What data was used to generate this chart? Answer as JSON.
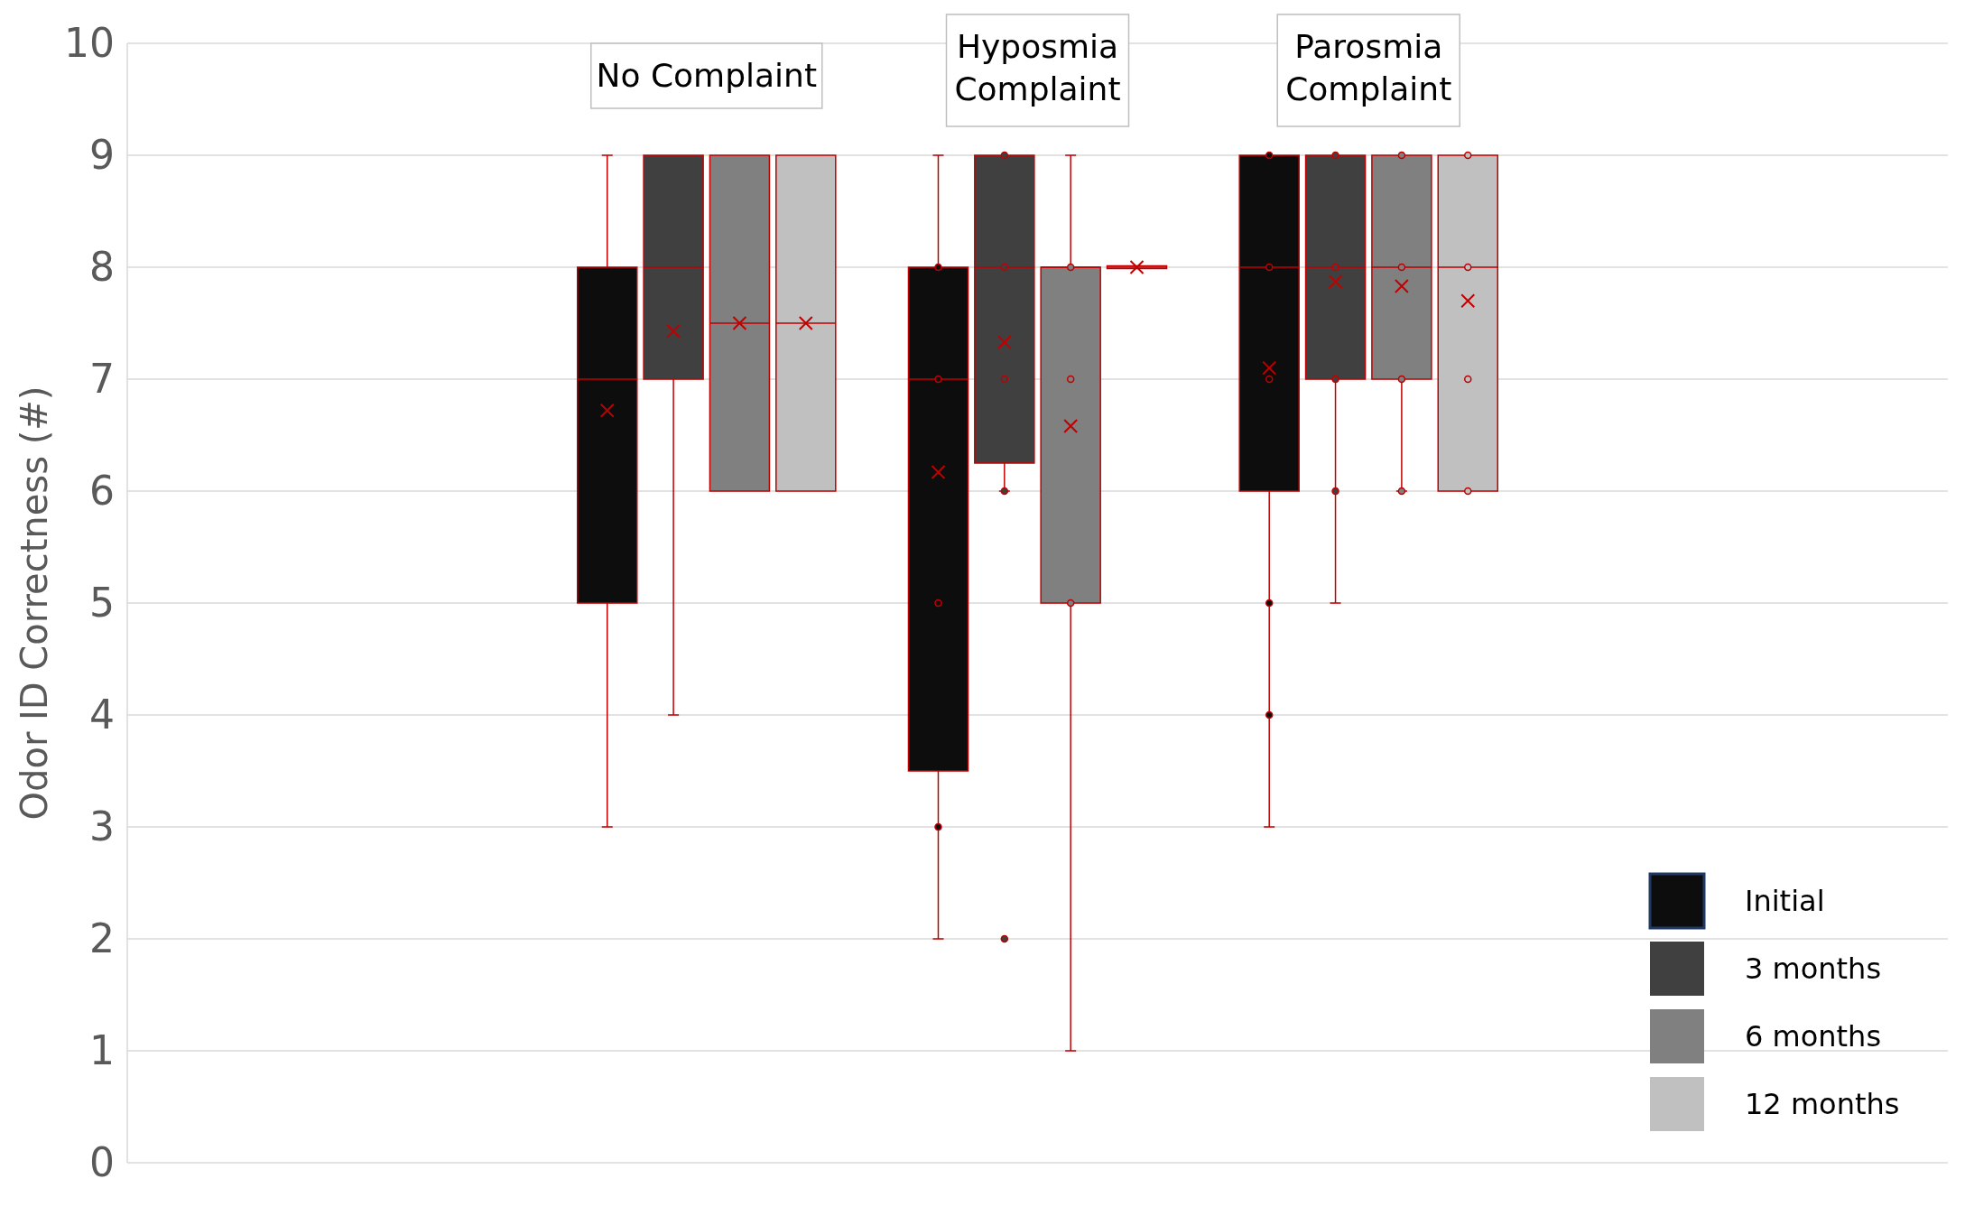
{
  "chart_data": {
    "type": "box",
    "ylabel": "Odor ID Correctness (#)",
    "categories": [
      null,
      "No Complaint",
      "Hyposmia Complaint",
      "Parosmia Complaint",
      null
    ],
    "ylim": [
      0,
      10
    ],
    "yticks": [
      0,
      1,
      2,
      3,
      4,
      5,
      6,
      7,
      8,
      9,
      10
    ],
    "grid": "y",
    "legend": "bottom right",
    "tick_labels": "y",
    "series": [
      {
        "name": "Initial",
        "color": "#0d0d0d",
        "boxes": [
          null,
          {
            "low": 3,
            "q1": 5,
            "median": 7,
            "q3": 8,
            "high": 9,
            "mean": 6.72
          },
          {
            "low": 2,
            "q1": 3.5,
            "median": 7,
            "q3": 8,
            "high": 9,
            "mean": 6.17,
            "outliers": [
              8,
              7,
              5,
              3
            ]
          },
          {
            "low": 3,
            "q1": 6,
            "median": 8,
            "q3": 9,
            "high": 9,
            "mean": 7.1,
            "outliers": [
              9,
              8,
              7,
              5,
              4
            ]
          },
          null
        ]
      },
      {
        "name": "3 months",
        "color": "#404040",
        "boxes": [
          null,
          {
            "low": 4,
            "q1": 7,
            "median": 8,
            "q3": 9,
            "high": 9,
            "mean": 7.43
          },
          {
            "low": 6,
            "q1": 6.25,
            "median": 8,
            "q3": 9,
            "high": 9,
            "mean": 7.33,
            "outliers": [
              9,
              8,
              7,
              6,
              2
            ]
          },
          {
            "low": 5,
            "q1": 7,
            "median": 8,
            "q3": 9,
            "high": 9,
            "mean": 7.87,
            "outliers": [
              9,
              8,
              7,
              6
            ]
          },
          null
        ]
      },
      {
        "name": "6 months",
        "color": "#808080",
        "boxes": [
          null,
          {
            "low": 6,
            "q1": 6,
            "median": 7.5,
            "q3": 9,
            "high": 9,
            "mean": 7.5
          },
          {
            "low": 1,
            "q1": 5,
            "median": 8,
            "q3": 8,
            "high": 9,
            "mean": 6.58,
            "outliers": [
              8,
              7,
              5
            ]
          },
          {
            "low": 6,
            "q1": 7,
            "median": 8,
            "q3": 9,
            "high": 9,
            "mean": 7.83,
            "outliers": [
              9,
              8,
              7,
              6
            ]
          },
          null
        ]
      },
      {
        "name": "12 months",
        "color": "#c0c0c0",
        "boxes": [
          null,
          {
            "low": 6,
            "q1": 6,
            "median": 7.5,
            "q3": 9,
            "high": 9,
            "mean": 7.5
          },
          {
            "low": 8,
            "q1": 8,
            "median": 8,
            "q3": 8,
            "high": 8,
            "mean": 8
          },
          {
            "low": 6,
            "q1": 6,
            "median": 8,
            "q3": 9,
            "high": 9,
            "mean": 7.7,
            "outliers": [
              9,
              8,
              7,
              6
            ]
          },
          null
        ]
      }
    ]
  }
}
